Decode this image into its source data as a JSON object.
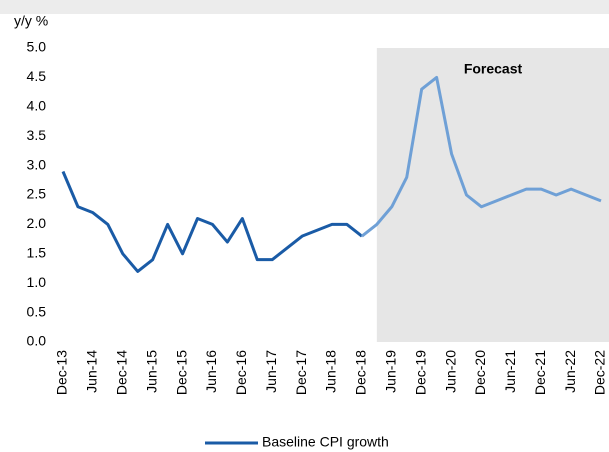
{
  "chart_data": {
    "type": "line",
    "ylabel": "y/y %",
    "annotation": "Forecast",
    "categories": [
      "Dec-13",
      null,
      "Jun-14",
      null,
      "Dec-14",
      null,
      "Jun-15",
      null,
      "Dec-15",
      null,
      "Jun-16",
      null,
      "Dec-16",
      null,
      "Jun-17",
      null,
      "Dec-17",
      null,
      "Jun-18",
      null,
      "Dec-18",
      null,
      "Jun-19",
      null,
      "Dec-19",
      null,
      "Jun-20",
      null,
      "Dec-20",
      null,
      "Jun-21",
      null,
      "Dec-21",
      null,
      "Jun-22",
      null,
      "Dec-22"
    ],
    "series": [
      {
        "name": "Baseline CPI growth",
        "color": "#1a5ba6",
        "values": [
          2.9,
          2.3,
          2.2,
          2.0,
          1.5,
          1.2,
          1.4,
          2.0,
          1.5,
          2.1,
          2.0,
          1.7,
          2.1,
          1.4,
          1.4,
          1.6,
          1.8,
          1.9,
          2.0,
          2.0,
          1.8,
          null,
          null,
          null,
          null,
          null,
          null,
          null,
          null,
          null,
          null,
          null,
          null,
          null,
          null,
          null,
          null
        ]
      },
      {
        "color": "#6fa0d6",
        "values": [
          null,
          null,
          null,
          null,
          null,
          null,
          null,
          null,
          null,
          null,
          null,
          null,
          null,
          null,
          null,
          null,
          null,
          null,
          null,
          null,
          1.8,
          2.0,
          2.3,
          2.8,
          4.3,
          4.5,
          3.2,
          2.5,
          2.3,
          2.4,
          2.5,
          2.6,
          2.6,
          2.5,
          2.6,
          2.5,
          2.4
        ]
      }
    ],
    "ylim": [
      0,
      5
    ],
    "yticks": [
      {
        "value": 0,
        "label": "0.0"
      },
      {
        "value": 0.5,
        "label": "0.5"
      },
      {
        "value": 1,
        "label": "1.0"
      },
      {
        "value": 1.5,
        "label": "1.5"
      },
      {
        "value": 2,
        "label": "2.0"
      },
      {
        "value": 2.5,
        "label": "2.5"
      },
      {
        "value": 3,
        "label": "3.0"
      },
      {
        "value": 3.5,
        "label": "3.5"
      },
      {
        "value": 4,
        "label": "4.0"
      },
      {
        "value": 4.5,
        "label": "4.5"
      },
      {
        "value": 5,
        "label": "5.0"
      }
    ],
    "legend": "bottom"
  }
}
